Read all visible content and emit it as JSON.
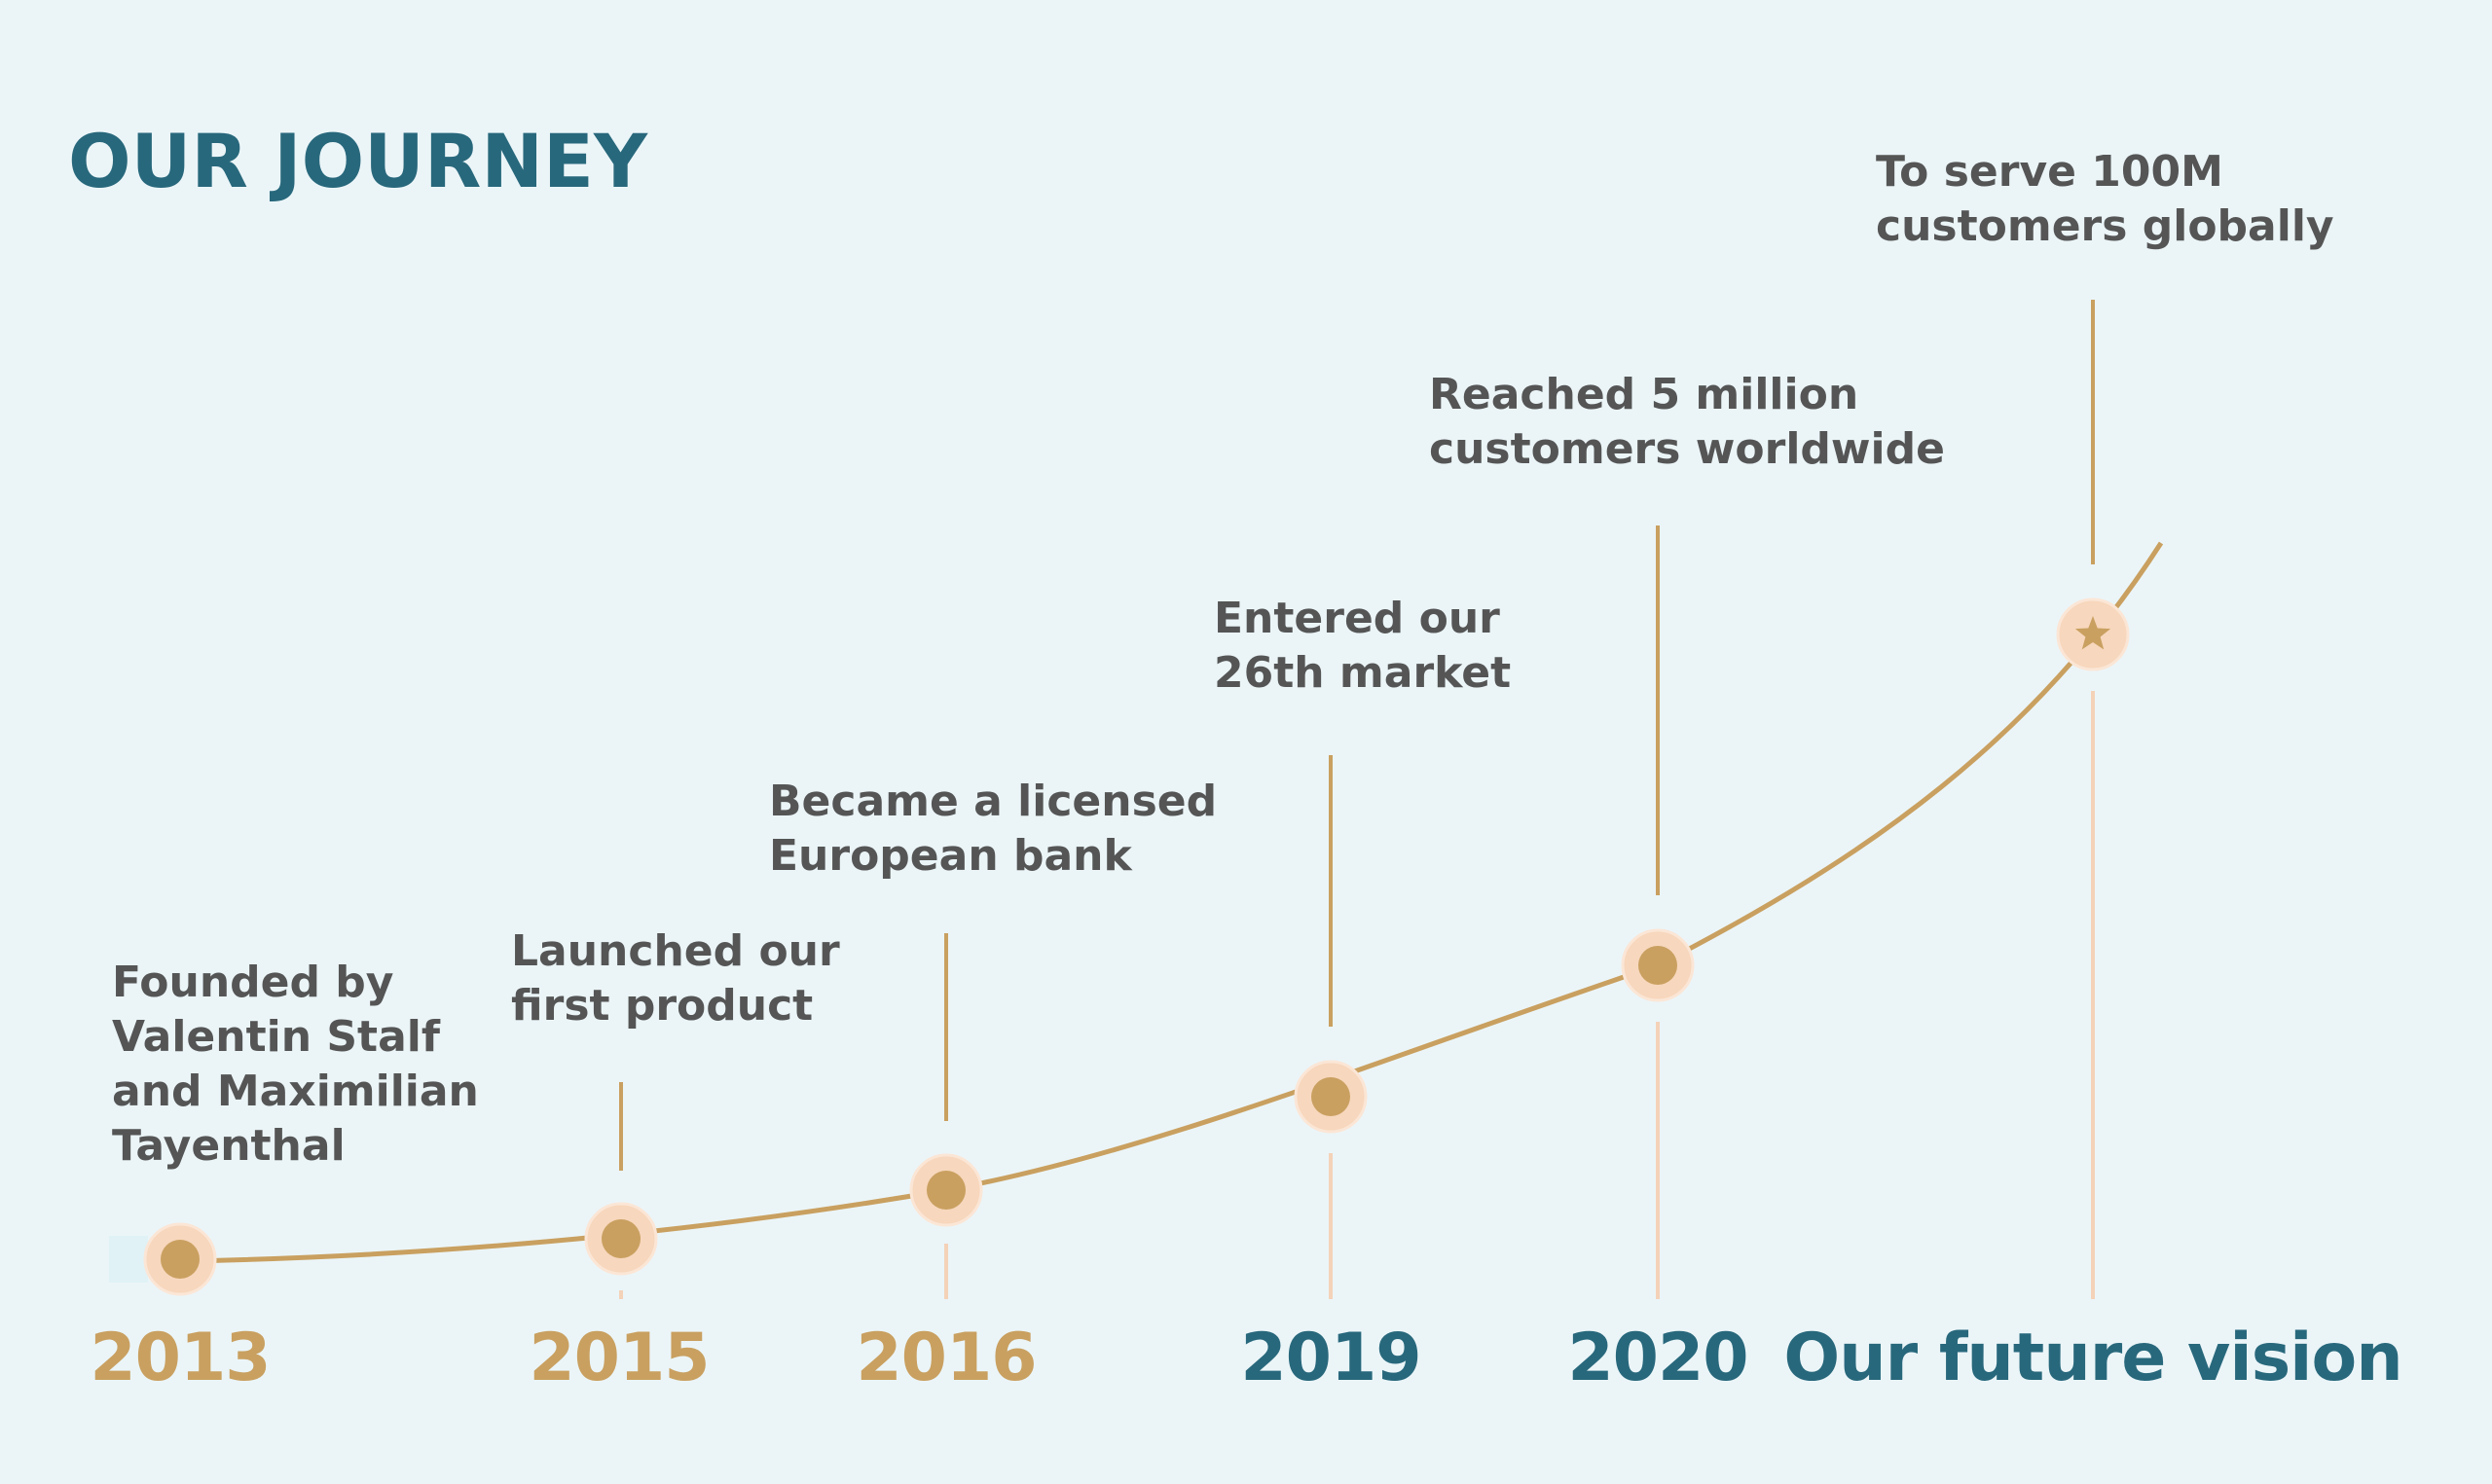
{
  "title": "OUR JOURNEY",
  "colors": {
    "background": "#ebf5f8",
    "accent_gold": "#c9a060",
    "accent_teal": "#28687c",
    "node_halo": "#f7d7bd",
    "text_gray": "#555555"
  },
  "milestones": [
    {
      "year": "2013",
      "year_style": "past",
      "lines": [
        "Founded by",
        "Valentin Stalf",
        "and Maximilian",
        "Tayenthal"
      ],
      "marker": "dot"
    },
    {
      "year": "2015",
      "year_style": "past",
      "lines": [
        "Launched our",
        "first product"
      ],
      "marker": "dot"
    },
    {
      "year": "2016",
      "year_style": "past",
      "lines": [
        "Became a licensed",
        "European bank"
      ],
      "marker": "dot"
    },
    {
      "year": "2019",
      "year_style": "recent",
      "lines": [
        "Entered our",
        "26th market"
      ],
      "marker": "dot"
    },
    {
      "year": "2020",
      "year_style": "recent",
      "lines": [
        "Reached 5 million",
        "customers worldwide"
      ],
      "marker": "dot"
    },
    {
      "year": "Our future vision",
      "year_style": "recent",
      "lines": [
        "To serve 100M",
        "customers globally"
      ],
      "marker": "star-icon"
    }
  ]
}
